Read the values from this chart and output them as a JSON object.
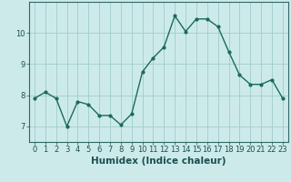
{
  "xlabel": "Humidex (Indice chaleur)",
  "x": [
    0,
    1,
    2,
    3,
    4,
    5,
    6,
    7,
    8,
    9,
    10,
    11,
    12,
    13,
    14,
    15,
    16,
    17,
    18,
    19,
    20,
    21,
    22,
    23
  ],
  "y": [
    7.9,
    8.1,
    7.9,
    7.0,
    7.8,
    7.7,
    7.35,
    7.35,
    7.05,
    7.4,
    8.75,
    9.2,
    9.55,
    10.55,
    10.05,
    10.45,
    10.45,
    10.2,
    9.4,
    8.65,
    8.35,
    8.35,
    8.5,
    7.9
  ],
  "ylim": [
    6.5,
    11.0
  ],
  "yticks": [
    7,
    8,
    9,
    10
  ],
  "xticks": [
    0,
    1,
    2,
    3,
    4,
    5,
    6,
    7,
    8,
    9,
    10,
    11,
    12,
    13,
    14,
    15,
    16,
    17,
    18,
    19,
    20,
    21,
    22,
    23
  ],
  "line_color": "#1a6b5a",
  "marker": "o",
  "markersize": 2.0,
  "linewidth": 1.0,
  "bg_color": "#cdeaea",
  "grid_color": "#a0cccc",
  "tick_color": "#1a5050",
  "axis_color": "#336666",
  "label_fontsize": 6.0,
  "xlabel_fontsize": 7.5
}
